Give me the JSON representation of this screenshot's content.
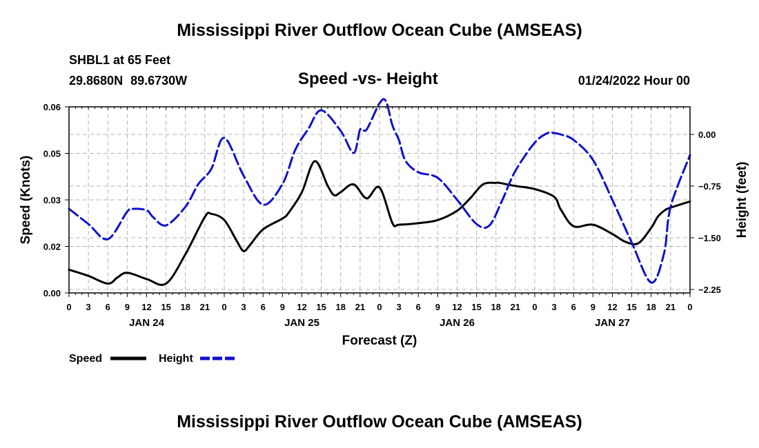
{
  "page": {
    "title_top": "Mississippi River Outflow Ocean Cube (AMSEAS)",
    "title_bottom": "Mississippi River Outflow Ocean Cube (AMSEAS)",
    "station": "SHBL1 at 65 Feet",
    "coordinates": "29.8680N  89.6730W",
    "chart_title": "Speed -vs- Height",
    "datetime": "01/24/2022 Hour 00"
  },
  "chart_data": {
    "type": "line",
    "title": "Speed -vs- Height",
    "xlabel": "Forecast (Z)",
    "ylabel_left": "Speed (Knots)",
    "ylabel_right": "Height (feet)",
    "xlim": [
      0,
      96
    ],
    "ylim_left": [
      0,
      0.06
    ],
    "ylim_right": [
      -2.3,
      0.4
    ],
    "left_ticks": [
      "0.00",
      "0.02",
      "0.03",
      "0.05",
      "0.06"
    ],
    "left_tick_values": [
      0,
      0.015,
      0.03,
      0.045,
      0.06
    ],
    "right_ticks": [
      "0.00",
      "−0.75",
      "−1.50",
      "−2.25"
    ],
    "right_tick_values": [
      0,
      -0.75,
      -1.5,
      -2.25
    ],
    "x_tick_values": [
      0,
      3,
      6,
      9,
      12,
      15,
      18,
      21,
      24,
      27,
      30,
      33,
      36,
      39,
      42,
      45,
      48,
      51,
      54,
      57,
      60,
      63,
      66,
      69,
      72,
      75,
      78,
      81,
      84,
      87,
      90,
      93,
      96
    ],
    "x_tick_labels": [
      "0",
      "3",
      "6",
      "9",
      "12",
      "15",
      "18",
      "21",
      "0",
      "3",
      "6",
      "9",
      "12",
      "15",
      "18",
      "21",
      "0",
      "3",
      "6",
      "9",
      "12",
      "15",
      "18",
      "21",
      "0",
      "3",
      "6",
      "9",
      "12",
      "15",
      "18",
      "21",
      "0"
    ],
    "day_labels": [
      {
        "hour": 12,
        "label": "JAN 24"
      },
      {
        "hour": 36,
        "label": "JAN 25"
      },
      {
        "hour": 60,
        "label": "JAN 26"
      },
      {
        "hour": 84,
        "label": "JAN 27"
      }
    ],
    "grid": true,
    "legend": [
      {
        "name": "Speed",
        "color": "#000000",
        "style": "solid"
      },
      {
        "name": "Height",
        "color": "#1010cc",
        "style": "dashed"
      }
    ],
    "series": [
      {
        "name": "Speed",
        "axis": "left",
        "color": "#000000",
        "x": [
          0,
          3,
          6,
          7.5,
          9,
          12,
          15,
          18,
          21,
          22,
          24,
          26,
          27,
          28,
          30,
          33,
          34,
          36,
          38,
          40,
          41,
          42,
          44,
          46,
          48,
          50,
          51,
          54,
          57,
          60,
          62,
          64,
          66,
          66.5,
          69,
          72,
          75,
          76,
          78,
          81,
          84,
          86,
          88,
          90,
          91,
          92,
          93,
          96
        ],
        "y": [
          0.0075,
          0.0055,
          0.003,
          0.005,
          0.0065,
          0.0045,
          0.003,
          0.0125,
          0.0245,
          0.0255,
          0.0235,
          0.0165,
          0.0135,
          0.0155,
          0.0205,
          0.024,
          0.026,
          0.0325,
          0.0425,
          0.0345,
          0.0315,
          0.0325,
          0.035,
          0.0305,
          0.034,
          0.0225,
          0.022,
          0.0225,
          0.0235,
          0.0265,
          0.0305,
          0.035,
          0.0355,
          0.0355,
          0.0345,
          0.0335,
          0.031,
          0.027,
          0.0215,
          0.022,
          0.019,
          0.0165,
          0.016,
          0.021,
          0.0245,
          0.0265,
          0.0275,
          0.0295
        ]
      },
      {
        "name": "Height",
        "axis": "right",
        "color": "#1010cc",
        "x": [
          0,
          3,
          6,
          9,
          10,
          12,
          13,
          15,
          18,
          20,
          22,
          24,
          27,
          30,
          33,
          35,
          37,
          39,
          42,
          44,
          45,
          46,
          48,
          49,
          50,
          51,
          52,
          54,
          57,
          60,
          63,
          65,
          67,
          69,
          72,
          74,
          75,
          76,
          78,
          81,
          84,
          87,
          90,
          92,
          93,
          96
        ],
        "y": [
          -1.08,
          -1.3,
          -1.52,
          -1.12,
          -1.08,
          -1.1,
          -1.2,
          -1.32,
          -1.05,
          -0.72,
          -0.5,
          -0.05,
          -0.6,
          -1.02,
          -0.72,
          -0.22,
          0.08,
          0.35,
          0.05,
          -0.27,
          0.07,
          0.07,
          0.45,
          0.48,
          0.13,
          -0.08,
          -0.38,
          -0.55,
          -0.63,
          -0.95,
          -1.3,
          -1.32,
          -0.95,
          -0.53,
          -0.12,
          0.02,
          0.02,
          0.0,
          -0.08,
          -0.37,
          -0.95,
          -1.57,
          -2.15,
          -1.72,
          -1.05,
          -0.3
        ]
      }
    ]
  }
}
